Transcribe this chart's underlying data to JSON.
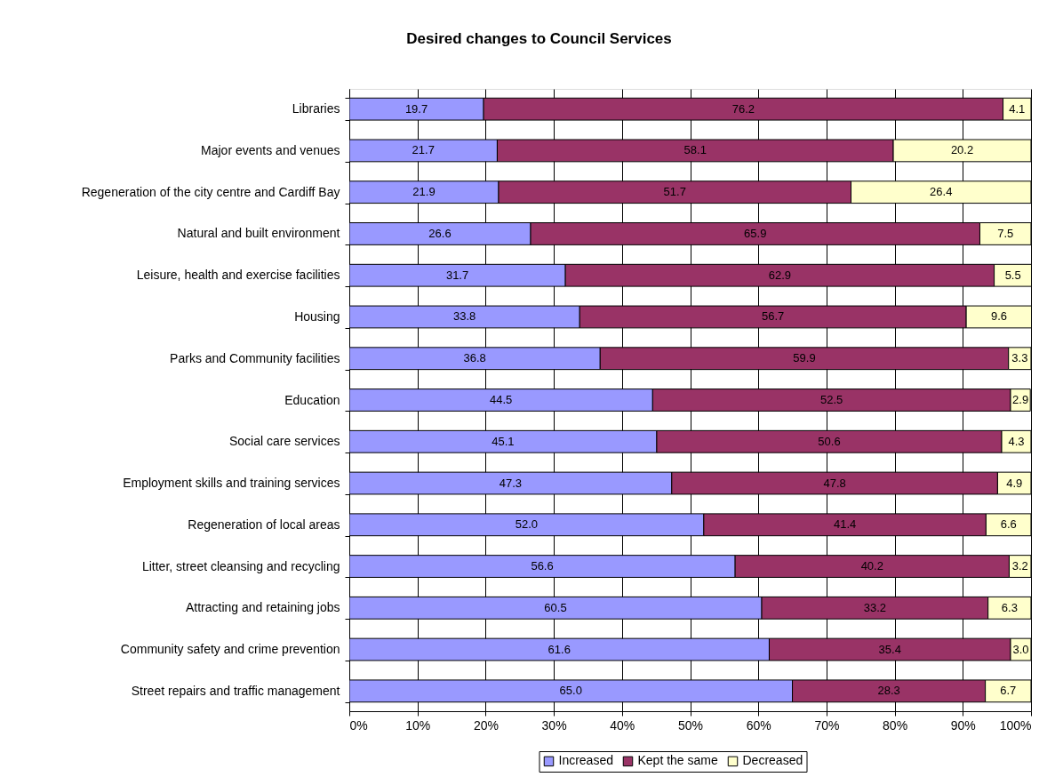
{
  "chart_data": {
    "type": "bar",
    "orientation": "horizontal",
    "stacked": true,
    "title": "Desired changes to Council Services",
    "categories": [
      "Libraries",
      "Major events and venues",
      "Regeneration of the city centre and Cardiff Bay",
      "Natural and built environment",
      "Leisure, health and exercise facilities",
      "Housing",
      "Parks and Community facilities",
      "Education",
      "Social care services",
      "Employment skills and training services",
      "Regeneration of local areas",
      "Litter, street cleansing and recycling",
      "Attracting and retaining jobs",
      "Community safety and crime prevention",
      "Street repairs and traffic management"
    ],
    "series": [
      {
        "name": "Increased",
        "color": "#9999ff",
        "values": [
          19.7,
          21.7,
          21.9,
          26.6,
          31.7,
          33.8,
          36.8,
          44.5,
          45.1,
          47.3,
          52.0,
          56.6,
          60.5,
          61.6,
          65.0
        ],
        "value_labels": [
          "19.7",
          "21.7",
          "21.9",
          "26.6",
          "31.7",
          "33.8",
          "36.8",
          "44.5",
          "45.1",
          "47.3",
          "52.0",
          "56.6",
          "60.5",
          "61.6",
          "65.0"
        ]
      },
      {
        "name": "Kept the same",
        "color": "#993366",
        "values": [
          76.2,
          58.1,
          51.7,
          65.9,
          62.9,
          56.7,
          59.9,
          52.5,
          50.6,
          47.8,
          41.4,
          40.2,
          33.2,
          35.4,
          28.3
        ],
        "value_labels": [
          "76.2",
          "58.1",
          "51.7",
          "65.9",
          "62.9",
          "56.7",
          "59.9",
          "52.5",
          "50.6",
          "47.8",
          "41.4",
          "40.2",
          "33.2",
          "35.4",
          "28.3"
        ]
      },
      {
        "name": "Decreased",
        "color": "#ffffcc",
        "values": [
          4.1,
          20.2,
          26.4,
          7.5,
          5.5,
          9.6,
          3.3,
          2.9,
          4.3,
          4.9,
          6.6,
          3.2,
          6.3,
          3.0,
          6.7
        ],
        "value_labels": [
          "4.1",
          "20.2",
          "26.4",
          "7.5",
          "5.5",
          "9.6",
          "3.3",
          "2.9",
          "4.3",
          "4.9",
          "6.6",
          "3.2",
          "6.3",
          "3.0",
          "6.7"
        ]
      }
    ],
    "xlim": [
      0,
      100
    ],
    "xticks": [
      {
        "value": 0,
        "label": "0%"
      },
      {
        "value": 10,
        "label": "10%"
      },
      {
        "value": 20,
        "label": "20%"
      },
      {
        "value": 30,
        "label": "30%"
      },
      {
        "value": 40,
        "label": "40%"
      },
      {
        "value": 50,
        "label": "50%"
      },
      {
        "value": 60,
        "label": "60%"
      },
      {
        "value": 70,
        "label": "70%"
      },
      {
        "value": 80,
        "label": "80%"
      },
      {
        "value": 90,
        "label": "90%"
      },
      {
        "value": 100,
        "label": "100%"
      }
    ],
    "grid": "x",
    "legend": "bottom"
  }
}
